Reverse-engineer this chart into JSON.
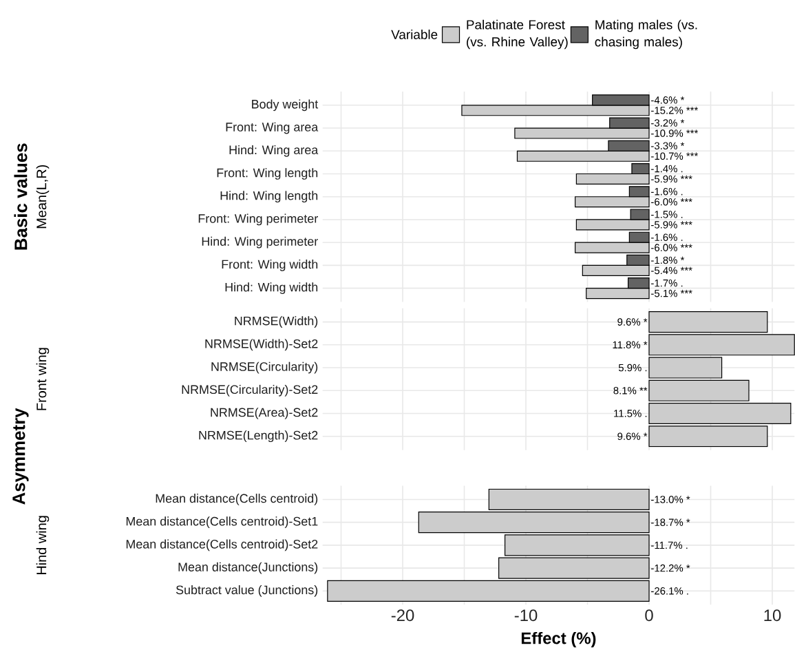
{
  "chart_data": [
    {
      "type": "bar",
      "orientation": "horizontal",
      "annotations": [
        "Basic values",
        "Mean(L,R)"
      ],
      "legend": "top",
      "legend_title": "Variable",
      "grid": true,
      "tick_labels": "y",
      "categories": [
        "Body weight",
        "Front: Wing area",
        "Hind: Wing area",
        "Front: Wing length",
        "Hind: Wing length",
        "Front: Wing perimeter",
        "Hind: Wing perimeter",
        "Front: Wing width",
        "Hind: Wing width"
      ],
      "series": [
        {
          "name": "Palatinate Forest (vs. Rhine Valley)",
          "color": "#cccccc",
          "values": [
            -15.2,
            -10.9,
            -10.7,
            -5.9,
            -6.0,
            -5.9,
            -6.0,
            -5.4,
            -5.1
          ],
          "value_labels": [
            "-15.2% ***",
            "-10.9% ***",
            "-10.7% ***",
            "-5.9% ***",
            "-6.0% ***",
            "-5.9% ***",
            "-6.0% ***",
            "-5.4% ***",
            "-5.1% ***"
          ]
        },
        {
          "name": "Mating males (vs. chasing males)",
          "color": "#636363",
          "values": [
            -4.6,
            -3.2,
            -3.3,
            -1.4,
            -1.6,
            -1.5,
            -1.6,
            -1.8,
            -1.7
          ],
          "value_labels": [
            "-4.6% *",
            "-3.2% *",
            "-3.3% *",
            "-1.4% .",
            "-1.6% .",
            "-1.5% .",
            "-1.6% .",
            "-1.8% *",
            "-1.7% ."
          ]
        }
      ],
      "xlim": [
        -26.5,
        11.8
      ],
      "xticks": [
        {
          "value": -25,
          "label": null
        },
        {
          "value": -20,
          "label": null
        },
        {
          "value": -15,
          "label": null
        },
        {
          "value": -10,
          "label": null
        },
        {
          "value": -5,
          "label": null
        },
        {
          "value": 0,
          "label": null
        },
        {
          "value": 5,
          "label": null
        },
        {
          "value": 10,
          "label": null
        }
      ]
    },
    {
      "type": "bar",
      "orientation": "horizontal",
      "annotations": [
        "Asymmetry",
        "Front wing"
      ],
      "grid": true,
      "tick_labels": "y",
      "categories": [
        "NRMSE(Width)",
        "NRMSE(Width)-Set2",
        "NRMSE(Circularity)",
        "NRMSE(Circularity)-Set2",
        "NRMSE(Area)-Set2",
        "NRMSE(Length)-Set2"
      ],
      "series": [
        {
          "color": "#cccccc",
          "values": [
            9.6,
            11.8,
            5.9,
            8.1,
            11.5,
            9.6
          ],
          "value_labels": [
            "9.6% *",
            "11.8% *",
            "5.9% .",
            "8.1% **",
            "11.5% .",
            "9.6% *"
          ]
        }
      ],
      "xlim": [
        -26.5,
        11.8
      ],
      "xticks": [
        {
          "value": -25,
          "label": null
        },
        {
          "value": -20,
          "label": null
        },
        {
          "value": -15,
          "label": null
        },
        {
          "value": -10,
          "label": null
        },
        {
          "value": -5,
          "label": null
        },
        {
          "value": 0,
          "label": null
        },
        {
          "value": 5,
          "label": null
        },
        {
          "value": 10,
          "label": null
        }
      ]
    },
    {
      "type": "bar",
      "orientation": "horizontal",
      "annotations": [
        "Hind wing"
      ],
      "xlabel": "Effect (%)",
      "grid": true,
      "categories": [
        "Mean distance(Cells centroid)",
        "Mean distance(Cells centroid)-Set1",
        "Mean distance(Cells centroid)-Set2",
        "Mean distance(Junctions)",
        "Subtract value (Junctions)"
      ],
      "series": [
        {
          "color": "#cccccc",
          "values": [
            -13.0,
            -18.7,
            -11.7,
            -12.2,
            -26.1
          ],
          "value_labels": [
            "-13.0% *",
            "-18.7% *",
            "-11.7% .",
            "-12.2% *",
            "-26.1% ."
          ]
        }
      ],
      "xlim": [
        -26.5,
        11.8
      ],
      "xticks": [
        {
          "value": -25,
          "label": null
        },
        -20,
        {
          "value": -15,
          "label": null
        },
        -10,
        {
          "value": -5,
          "label": null
        },
        0,
        {
          "value": 5,
          "label": null
        },
        10
      ]
    }
  ]
}
